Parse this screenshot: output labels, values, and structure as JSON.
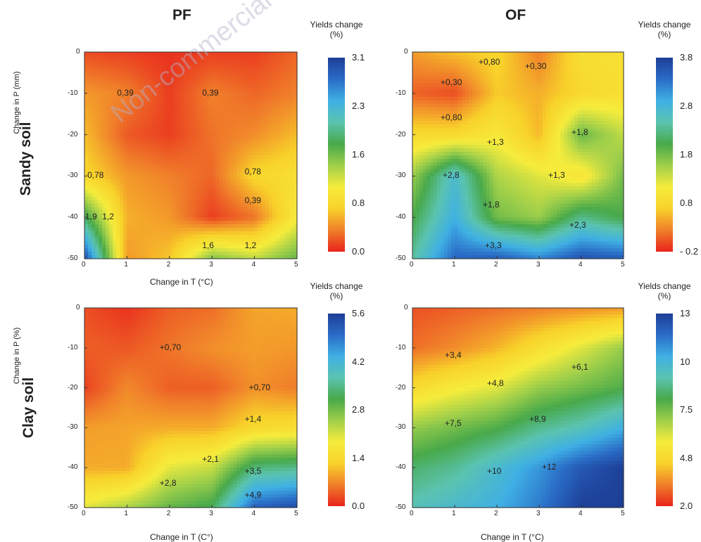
{
  "figure": {
    "columns": [
      "PF",
      "OF"
    ],
    "rows": [
      "Sandy soil",
      "Clay soil"
    ],
    "watermark": "Non-commercial"
  },
  "chart_data": [
    {
      "type": "heatmap",
      "id": "sandy-pf",
      "xlabel": "Change in T (°C)",
      "ylabel": "Change in P (mm)",
      "xticks": [
        "0",
        "1",
        "2",
        "3",
        "4",
        "5"
      ],
      "yticks": [
        "0",
        "-10",
        "-20",
        "-30",
        "-40",
        "-50"
      ],
      "xlim": [
        0,
        5
      ],
      "ylim": [
        -50,
        0
      ],
      "colorbar": {
        "title": [
          "Yields change",
          "(%)"
        ],
        "ticks": [
          "3.1",
          "2.3",
          "1.6",
          "0.8",
          "0.0"
        ],
        "range": [
          0.0,
          3.1
        ]
      },
      "x": [
        0,
        1,
        2,
        3,
        4,
        5
      ],
      "y": [
        0,
        -10,
        -20,
        -30,
        -40,
        -50
      ],
      "z": [
        [
          0.15,
          0.1,
          0.05,
          0.1,
          0.1,
          0.25
        ],
        [
          0.45,
          0.35,
          0.1,
          0.35,
          0.25,
          0.35
        ],
        [
          0.6,
          0.2,
          0.1,
          0.3,
          0.4,
          0.6
        ],
        [
          0.75,
          0.45,
          0.35,
          0.25,
          0.75,
          0.85
        ],
        [
          1.8,
          0.55,
          0.45,
          0.1,
          0.3,
          1.0
        ],
        [
          3.0,
          0.45,
          0.65,
          1.5,
          1.25,
          1.6
        ]
      ],
      "contour_labels": [
        {
          "text": "0,39",
          "x": 1.0,
          "y": -10
        },
        {
          "text": "0,39",
          "x": 3.0,
          "y": -10
        },
        {
          "text": "0,78",
          "x": 0.3,
          "y": -30
        },
        {
          "text": "0,78",
          "x": 4.0,
          "y": -29
        },
        {
          "text": "0,39",
          "x": 4.0,
          "y": -36
        },
        {
          "text": "1,9",
          "x": 0.25,
          "y": -40
        },
        {
          "text": "1,2",
          "x": 0.65,
          "y": -40
        },
        {
          "text": "1,6",
          "x": 3.0,
          "y": -47
        },
        {
          "text": "1,2",
          "x": 4.0,
          "y": -47
        }
      ]
    },
    {
      "type": "heatmap",
      "id": "sandy-of",
      "xlabel": "",
      "ylabel": "",
      "xticks": [
        "0",
        "1",
        "2",
        "3",
        "4",
        "5"
      ],
      "yticks": [
        "0",
        "-10",
        "-20",
        "-30",
        "-40",
        "-50"
      ],
      "xlim": [
        0,
        5
      ],
      "ylim": [
        -50,
        0
      ],
      "colorbar": {
        "title": [
          "Yields change",
          "(%)"
        ],
        "ticks": [
          "3.8",
          "2.8",
          "1.8",
          "0.8",
          "- 0.2"
        ],
        "range": [
          -0.2,
          3.8
        ]
      },
      "x": [
        0,
        1,
        2,
        3,
        4,
        5
      ],
      "y": [
        0,
        -10,
        -20,
        -30,
        -40,
        -50
      ],
      "z": [
        [
          0.4,
          0.6,
          0.75,
          0.25,
          0.9,
          0.9
        ],
        [
          0.1,
          0.0,
          0.65,
          0.5,
          0.8,
          0.9
        ],
        [
          0.8,
          0.8,
          1.05,
          0.55,
          1.85,
          1.4
        ],
        [
          1.6,
          2.7,
          1.5,
          1.25,
          0.95,
          1.8
        ],
        [
          2.0,
          2.9,
          1.8,
          1.6,
          2.3,
          2.0
        ],
        [
          2.4,
          3.4,
          3.5,
          3.2,
          3.6,
          3.5
        ]
      ],
      "contour_labels": [
        {
          "text": "+0,80",
          "x": 1.8,
          "y": -2.5
        },
        {
          "text": "+0,30",
          "x": 2.9,
          "y": -3.5
        },
        {
          "text": "+0,30",
          "x": 0.9,
          "y": -7.5
        },
        {
          "text": "+0,80",
          "x": 0.9,
          "y": -16
        },
        {
          "text": "+1,8",
          "x": 4.0,
          "y": -19.5
        },
        {
          "text": "+1,3",
          "x": 2.0,
          "y": -22
        },
        {
          "text": "+2,8",
          "x": 0.95,
          "y": -30
        },
        {
          "text": "+1,3",
          "x": 3.45,
          "y": -30
        },
        {
          "text": "+1,8",
          "x": 1.9,
          "y": -37
        },
        {
          "text": "+2,3",
          "x": 3.95,
          "y": -42
        },
        {
          "text": "+3,3",
          "x": 1.95,
          "y": -47
        }
      ]
    },
    {
      "type": "heatmap",
      "id": "clay-pf",
      "xlabel": "Change in T (C°)",
      "ylabel": "Change in P (%)",
      "xticks": [
        "0",
        "1",
        "2",
        "3",
        "4",
        "5"
      ],
      "yticks": [
        "0",
        "-10",
        "-20",
        "-30",
        "-40",
        "-50"
      ],
      "xlim": [
        0,
        5
      ],
      "ylim": [
        -50,
        0
      ],
      "colorbar": {
        "title": [
          "Yields change",
          "(%)"
        ],
        "ticks": [
          "5.6",
          "4.2",
          "2.8",
          "1.4",
          "0.0"
        ],
        "range": [
          0.0,
          5.6
        ]
      },
      "x": [
        0,
        1,
        2,
        3,
        4,
        5
      ],
      "y": [
        0,
        -10,
        -20,
        -30,
        -40,
        -50
      ],
      "z": [
        [
          0.3,
          0.1,
          0.4,
          0.5,
          0.9,
          0.95
        ],
        [
          0.4,
          0.35,
          0.55,
          0.75,
          0.85,
          0.8
        ],
        [
          0.2,
          0.7,
          0.4,
          0.4,
          0.75,
          0.6
        ],
        [
          0.85,
          0.9,
          0.95,
          0.95,
          1.4,
          1.5
        ],
        [
          0.95,
          0.95,
          2.0,
          2.2,
          3.4,
          3.5
        ],
        [
          2.0,
          2.4,
          2.9,
          3.2,
          5.1,
          5.4
        ]
      ],
      "contour_labels": [
        {
          "text": "+0,70",
          "x": 2.0,
          "y": -10
        },
        {
          "text": "+0,70",
          "x": 4.1,
          "y": -20
        },
        {
          "text": "+1,4",
          "x": 4.0,
          "y": -28
        },
        {
          "text": "+2,1",
          "x": 3.0,
          "y": -38
        },
        {
          "text": "+3,5",
          "x": 4.0,
          "y": -41
        },
        {
          "text": "+2,8",
          "x": 2.0,
          "y": -44
        },
        {
          "text": "+4,9",
          "x": 4.0,
          "y": -47
        }
      ]
    },
    {
      "type": "heatmap",
      "id": "clay-of",
      "xlabel": "Change in T (°C)",
      "ylabel": "",
      "xticks": [
        "0",
        "1",
        "2",
        "3",
        "4",
        "5"
      ],
      "yticks": [
        "0",
        "-10",
        "-20",
        "-30",
        "-40",
        "-50"
      ],
      "xlim": [
        0,
        5
      ],
      "ylim": [
        -50,
        0
      ],
      "colorbar": {
        "title": [
          "Yields change",
          "(%)"
        ],
        "ticks": [
          "13",
          "10",
          "7.5",
          "4.8",
          "2.0"
        ],
        "range": [
          2.0,
          13.0
        ]
      },
      "x": [
        0,
        1,
        2,
        3,
        4,
        5
      ],
      "y": [
        0,
        -10,
        -20,
        -30,
        -40,
        -50
      ],
      "z": [
        [
          2.6,
          2.8,
          3.0,
          3.2,
          3.4,
          3.6
        ],
        [
          3.0,
          3.4,
          4.0,
          5.0,
          6.0,
          7.0
        ],
        [
          4.8,
          5.5,
          6.0,
          7.0,
          7.5,
          8.0
        ],
        [
          7.0,
          7.5,
          8.0,
          8.9,
          9.5,
          10.5
        ],
        [
          8.5,
          9.0,
          10.0,
          11.0,
          12.3,
          13.0
        ],
        [
          9.5,
          10.0,
          10.5,
          11.5,
          13.0,
          13.0
        ]
      ],
      "contour_labels": [
        {
          "text": "+3,4",
          "x": 1.0,
          "y": -12
        },
        {
          "text": "+4,8",
          "x": 2.0,
          "y": -19
        },
        {
          "text": "+6,1",
          "x": 4.0,
          "y": -15
        },
        {
          "text": "+7,5",
          "x": 1.0,
          "y": -29
        },
        {
          "text": "+8,9",
          "x": 3.0,
          "y": -28
        },
        {
          "text": "+10",
          "x": 2.0,
          "y": -41
        },
        {
          "text": "+12",
          "x": 3.3,
          "y": -40
        }
      ]
    }
  ],
  "colors": {
    "scale": [
      "#e8241c",
      "#f07f2a",
      "#f8d22a",
      "#f6ec3c",
      "#9fcf4a",
      "#48a94a",
      "#5bc3b0",
      "#3fb0e4",
      "#2a6cc6",
      "#1d3f97"
    ],
    "contour_line": "#6a5a2a",
    "axis": "#333333",
    "watermark": "#b8b0c8"
  }
}
